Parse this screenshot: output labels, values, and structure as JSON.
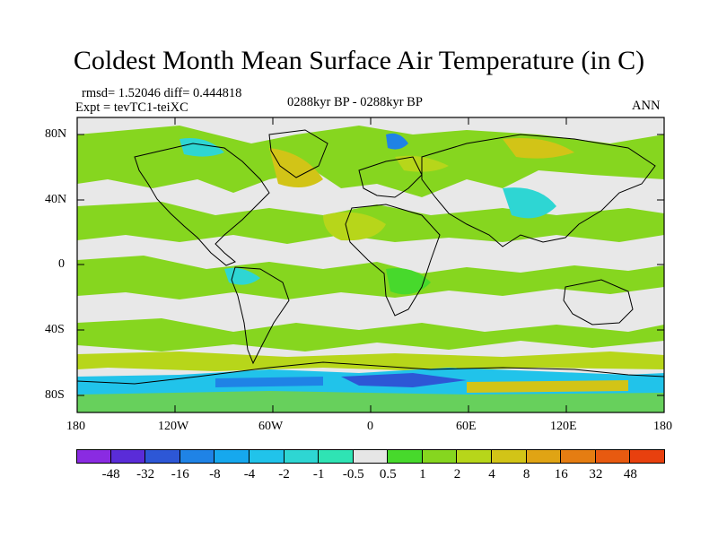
{
  "title": "Coldest Month Mean Surface Air Temperature (in C)",
  "stats": "rmsd= 1.52046 diff= 0.444818",
  "experiment": "Expt = tevTC1-teiXC",
  "period": "0288kyr BP - 0288kyr BP",
  "season": "ANN",
  "lat_labels": [
    "80N",
    "40N",
    "0",
    "40S",
    "80S"
  ],
  "lon_labels": [
    "180",
    "120W",
    "60W",
    "0",
    "60E",
    "120E",
    "180"
  ],
  "colorbar": {
    "labels": [
      "-48",
      "-32",
      "-16",
      "-8",
      "-4",
      "-2",
      "-1",
      "-0.5",
      "0.5",
      "1",
      "2",
      "4",
      "8",
      "16",
      "32",
      "48"
    ],
    "colors": [
      "#8a2be2",
      "#5a2cd8",
      "#2d57d6",
      "#1f83e6",
      "#16a8ee",
      "#21c3ea",
      "#2ed6d3",
      "#2fe3b4",
      "#e6e6e6",
      "#47d92c",
      "#86d61f",
      "#b7d61a",
      "#d2c417",
      "#e0a414",
      "#e57d12",
      "#e85a10",
      "#e8400e"
    ]
  }
}
